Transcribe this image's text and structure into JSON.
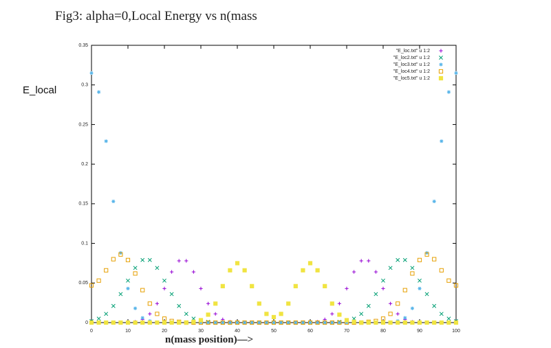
{
  "chart_data": {
    "type": "scatter",
    "title": "Fig3: alpha=0,Local Energy vs n(mass",
    "y_label": "E_local",
    "x_label": "n(mass position)—>",
    "x": [
      0,
      2,
      4,
      6,
      8,
      10,
      12,
      14,
      16,
      18,
      20,
      22,
      24,
      26,
      28,
      30,
      32,
      34,
      36,
      38,
      40,
      42,
      44,
      46,
      48,
      50,
      52,
      54,
      56,
      58,
      60,
      62,
      64,
      66,
      68,
      70,
      72,
      74,
      76,
      78,
      80,
      82,
      84,
      86,
      88,
      90,
      92,
      94,
      96,
      98,
      100
    ],
    "xlim": [
      0,
      100
    ],
    "xticks": [
      0,
      10,
      20,
      30,
      40,
      50,
      60,
      70,
      80,
      90,
      100
    ],
    "ylim": [
      0,
      0.35
    ],
    "yticks": [
      0,
      0.05,
      0.1,
      0.15,
      0.2,
      0.25,
      0.3,
      0.35
    ],
    "legend": "top-right",
    "series": [
      {
        "name": "\"E_loc.txt\" u 1:2",
        "color": "#9400d3",
        "marker": "plus",
        "values": [
          0,
          0,
          0,
          0,
          0,
          0,
          0.001,
          0.004,
          0.011,
          0.024,
          0.043,
          0.064,
          0.078,
          0.078,
          0.064,
          0.043,
          0.024,
          0.011,
          0.004,
          0.001,
          0,
          0,
          0,
          0,
          0,
          0,
          0,
          0,
          0,
          0,
          0,
          0.001,
          0.004,
          0.011,
          0.024,
          0.043,
          0.064,
          0.078,
          0.078,
          0.064,
          0.043,
          0.024,
          0.011,
          0.004,
          0.001,
          0,
          0,
          0,
          0,
          0,
          0
        ]
      },
      {
        "name": "\"E_loc2.txt\" u 1:2",
        "color": "#009e73",
        "marker": "cross",
        "values": [
          0.002,
          0.005,
          0.011,
          0.021,
          0.036,
          0.053,
          0.069,
          0.079,
          0.079,
          0.069,
          0.053,
          0.036,
          0.021,
          0.011,
          0.005,
          0.002,
          0.001,
          0,
          0,
          0,
          0,
          0,
          0,
          0,
          0,
          0,
          0,
          0,
          0,
          0,
          0,
          0,
          0,
          0,
          0.001,
          0.002,
          0.005,
          0.011,
          0.021,
          0.036,
          0.053,
          0.069,
          0.079,
          0.079,
          0.069,
          0.053,
          0.036,
          0.021,
          0.011,
          0.005,
          0.002
        ]
      },
      {
        "name": "\"E_loc3.txt\" u 1:2",
        "color": "#56b4e9",
        "marker": "star",
        "values": [
          0.315,
          0.291,
          0.229,
          0.153,
          0.088,
          0.043,
          0.018,
          0.006,
          0.002,
          0,
          0,
          0,
          0,
          0,
          0,
          0,
          0,
          0,
          0,
          0,
          0,
          0,
          0,
          0,
          0,
          0,
          0,
          0,
          0,
          0,
          0,
          0,
          0,
          0,
          0,
          0,
          0,
          0,
          0,
          0,
          0,
          0,
          0.002,
          0.006,
          0.018,
          0.043,
          0.088,
          0.153,
          0.229,
          0.291,
          0.315
        ]
      },
      {
        "name": "\"E_loc4.txt\" u 1:2",
        "color": "#e69f00",
        "marker": "square-open",
        "values": [
          0.047,
          0.053,
          0.066,
          0.08,
          0.086,
          0.079,
          0.062,
          0.041,
          0.024,
          0.011,
          0.005,
          0.002,
          0.001,
          0,
          0,
          0,
          0,
          0,
          0,
          0,
          0,
          0,
          0,
          0,
          0,
          0,
          0,
          0,
          0,
          0,
          0,
          0,
          0,
          0,
          0,
          0,
          0,
          0,
          0.001,
          0.002,
          0.005,
          0.011,
          0.024,
          0.041,
          0.062,
          0.079,
          0.086,
          0.08,
          0.066,
          0.053,
          0.047
        ]
      },
      {
        "name": "\"E_loc5.txt\" u 1:2",
        "color": "#f0e442",
        "marker": "square-filled",
        "values": [
          0,
          0,
          0,
          0,
          0,
          0,
          0,
          0,
          0,
          0,
          0,
          0,
          0,
          0,
          0.001,
          0.003,
          0.01,
          0.024,
          0.046,
          0.066,
          0.075,
          0.066,
          0.046,
          0.024,
          0.011,
          0.007,
          0.011,
          0.024,
          0.046,
          0.066,
          0.075,
          0.066,
          0.046,
          0.024,
          0.01,
          0.003,
          0.001,
          0,
          0,
          0,
          0,
          0,
          0,
          0,
          0,
          0,
          0,
          0,
          0,
          0,
          0
        ]
      }
    ]
  }
}
